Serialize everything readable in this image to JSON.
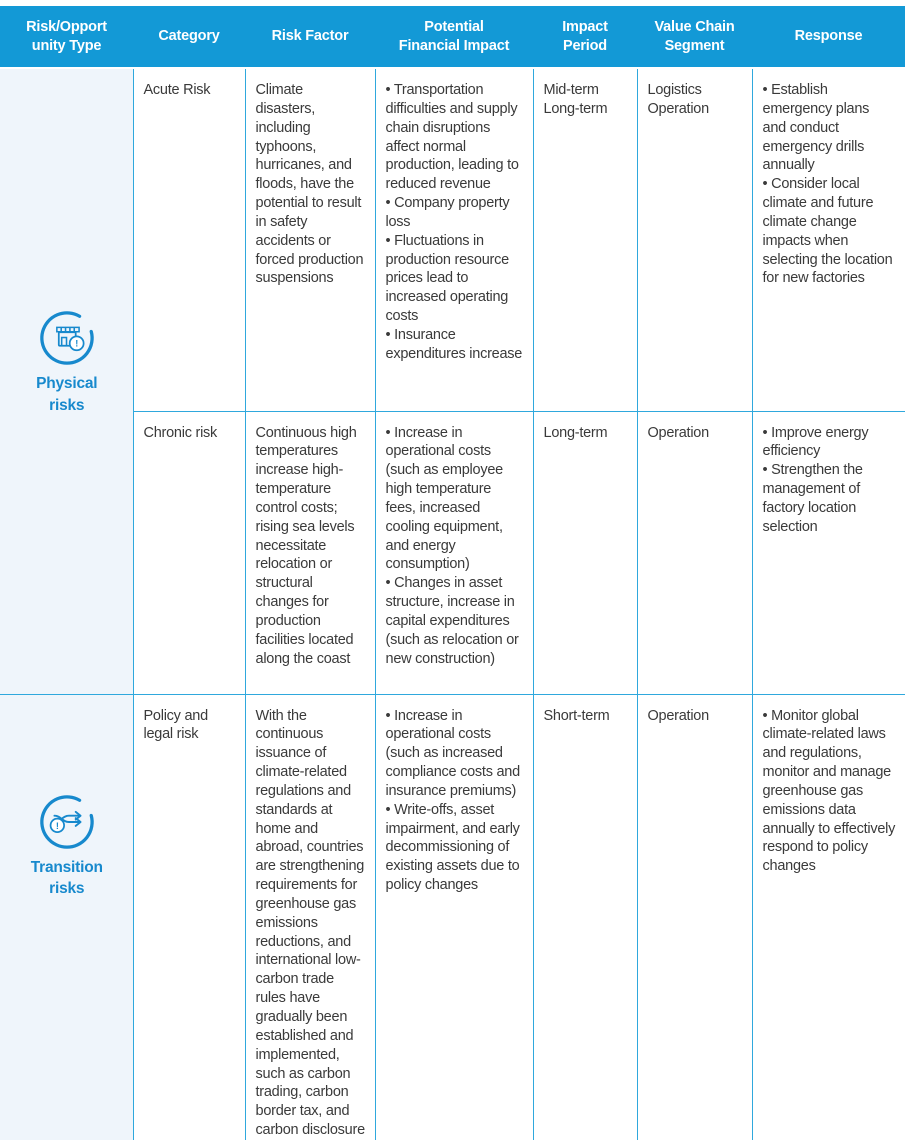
{
  "table": {
    "headers": [
      "Risk/Opport\nunity Type",
      "Category",
      "Risk Factor",
      "Potential\nFinancial Impact",
      "Impact\nPeriod",
      "Value Chain\nSegment",
      "Response"
    ],
    "groups": [
      {
        "type_label": "Physical\nrisks",
        "icon": "store-alert-icon",
        "rows": [
          {
            "category": "Acute Risk",
            "risk_factor": "Climate disasters, including typhoons, hurricanes, and floods, have the potential to result in safety accidents or forced production suspensions",
            "financial_impact": [
              "• Transportation difficulties and supply chain disruptions affect normal production, leading to reduced revenue",
              "• Company property loss",
              "• Fluctuations in production resource prices lead to increased operating costs",
              "• Insurance expenditures increase"
            ],
            "impact_period": "Mid-term\nLong-term",
            "value_chain": "Logistics\nOperation",
            "response": [
              "• Establish emergency plans and conduct emergency drills annually",
              "• Consider local climate and future climate change impacts when selecting the location for new factories"
            ]
          },
          {
            "category": "Chronic risk",
            "risk_factor": "Continuous high temperatures increase high-temperature control costs; rising sea levels necessitate relocation or structural changes for production facilities located along the coast",
            "financial_impact": [
              "• Increase in operational costs (such as employee high temperature fees, increased cooling equipment, and energy consumption)",
              "• Changes in asset structure, increase in capital expenditures (such as relocation or new construction)"
            ],
            "impact_period": "Long-term",
            "value_chain": "Operation",
            "response": [
              "• Improve energy efficiency",
              "• Strengthen the management of factory location selection"
            ]
          }
        ]
      },
      {
        "type_label": "Transition\nrisks",
        "icon": "branching-arrows-alert-icon",
        "rows": [
          {
            "category": "Policy and legal risk",
            "risk_factor": "With the continuous issuance of climate-related regulations and standards at home and abroad, countries are strengthening requirements for greenhouse gas emissions reductions, and international low-carbon trade rules have gradually been established and implemented, such as carbon trading, carbon border tax, and carbon disclosure",
            "financial_impact": [
              "• Increase in operational costs (such as increased compliance costs and insurance premiums)",
              "• Write-offs, asset impairment, and early decommissioning of existing assets due to policy changes"
            ],
            "impact_period": "Short-term",
            "value_chain": "Operation",
            "response": [
              "• Monitor global climate-related laws and regulations, monitor and manage greenhouse gas emissions data annually to effectively respond to policy changes"
            ]
          }
        ]
      }
    ],
    "colors": {
      "header_bg": "#1399d6",
      "border": "#2fa8dd",
      "group_cell_bg": "#eff5fb",
      "accent_text": "#1789cd",
      "bottom_bar": "#0d8bce",
      "body_text": "#3a3a3a"
    }
  }
}
